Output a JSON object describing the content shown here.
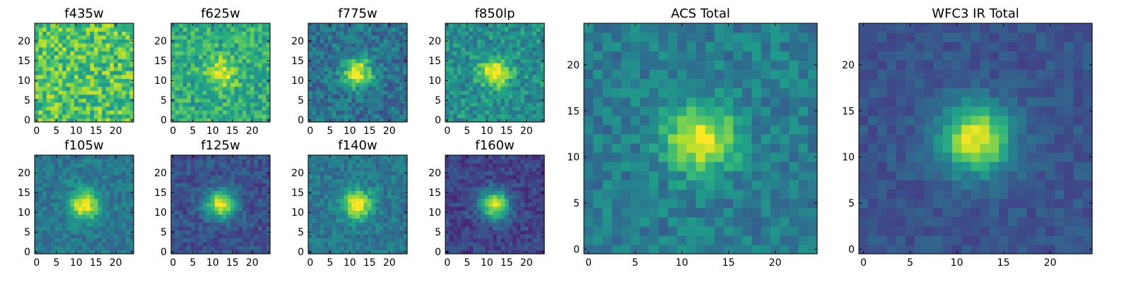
{
  "chart_data": [
    {
      "type": "heatmap",
      "title": "f435w",
      "xlim": [
        0,
        24
      ],
      "ylim": [
        0,
        24
      ],
      "xticks": [
        0,
        5,
        10,
        15,
        20
      ],
      "yticks": [
        0,
        5,
        10,
        15,
        20
      ],
      "colormap": "viridis",
      "source_peak": 0.0,
      "noise": 0.42,
      "background": 0.72
    },
    {
      "type": "heatmap",
      "title": "f625w",
      "xlim": [
        0,
        24
      ],
      "ylim": [
        0,
        24
      ],
      "xticks": [
        0,
        5,
        10,
        15,
        20
      ],
      "yticks": [
        0,
        5,
        10,
        15,
        20
      ],
      "colormap": "viridis",
      "source_peak": 0.35,
      "noise": 0.32,
      "background": 0.62
    },
    {
      "type": "heatmap",
      "title": "f775w",
      "xlim": [
        0,
        24
      ],
      "ylim": [
        0,
        24
      ],
      "xticks": [
        0,
        5,
        10,
        15,
        20
      ],
      "yticks": [
        0,
        5,
        10,
        15,
        20
      ],
      "colormap": "viridis",
      "source_peak": 0.6,
      "noise": 0.3,
      "background": 0.38
    },
    {
      "type": "heatmap",
      "title": "f850lp",
      "xlim": [
        0,
        24
      ],
      "ylim": [
        0,
        24
      ],
      "xticks": [
        0,
        5,
        10,
        15,
        20
      ],
      "yticks": [
        0,
        5,
        10,
        15,
        20
      ],
      "colormap": "viridis",
      "source_peak": 0.5,
      "noise": 0.32,
      "background": 0.5
    },
    {
      "type": "heatmap",
      "title": "f105w",
      "xlim": [
        0,
        24
      ],
      "ylim": [
        0,
        24
      ],
      "xticks": [
        0,
        5,
        10,
        15,
        20
      ],
      "yticks": [
        0,
        5,
        10,
        15,
        20
      ],
      "colormap": "viridis",
      "source_peak": 0.62,
      "noise": 0.22,
      "background": 0.4
    },
    {
      "type": "heatmap",
      "title": "f125w",
      "xlim": [
        0,
        24
      ],
      "ylim": [
        0,
        24
      ],
      "xticks": [
        0,
        5,
        10,
        15,
        20
      ],
      "yticks": [
        0,
        5,
        10,
        15,
        20
      ],
      "colormap": "viridis",
      "source_peak": 0.7,
      "noise": 0.2,
      "background": 0.25
    },
    {
      "type": "heatmap",
      "title": "f140w",
      "xlim": [
        0,
        24
      ],
      "ylim": [
        0,
        24
      ],
      "xticks": [
        0,
        5,
        10,
        15,
        20
      ],
      "yticks": [
        0,
        5,
        10,
        15,
        20
      ],
      "colormap": "viridis",
      "source_peak": 0.6,
      "noise": 0.22,
      "background": 0.4
    },
    {
      "type": "heatmap",
      "title": "f160w",
      "xlim": [
        0,
        24
      ],
      "ylim": [
        0,
        24
      ],
      "xticks": [
        0,
        5,
        10,
        15,
        20
      ],
      "yticks": [
        0,
        5,
        10,
        15,
        20
      ],
      "colormap": "viridis",
      "source_peak": 0.75,
      "noise": 0.2,
      "background": 0.2
    },
    {
      "type": "heatmap",
      "title": "ACS Total",
      "xlim": [
        0,
        24
      ],
      "ylim": [
        0,
        24
      ],
      "xticks": [
        0,
        5,
        10,
        15,
        20
      ],
      "yticks": [
        0,
        5,
        10,
        15,
        20
      ],
      "colormap": "viridis",
      "source_peak": 0.58,
      "noise": 0.24,
      "background": 0.42
    },
    {
      "type": "heatmap",
      "title": "WFC3 IR Total",
      "xlim": [
        0,
        24
      ],
      "ylim": [
        0,
        24
      ],
      "xticks": [
        0,
        5,
        10,
        15,
        20
      ],
      "yticks": [
        0,
        5,
        10,
        15,
        20
      ],
      "colormap": "viridis",
      "source_peak": 0.72,
      "noise": 0.14,
      "background": 0.26
    }
  ]
}
